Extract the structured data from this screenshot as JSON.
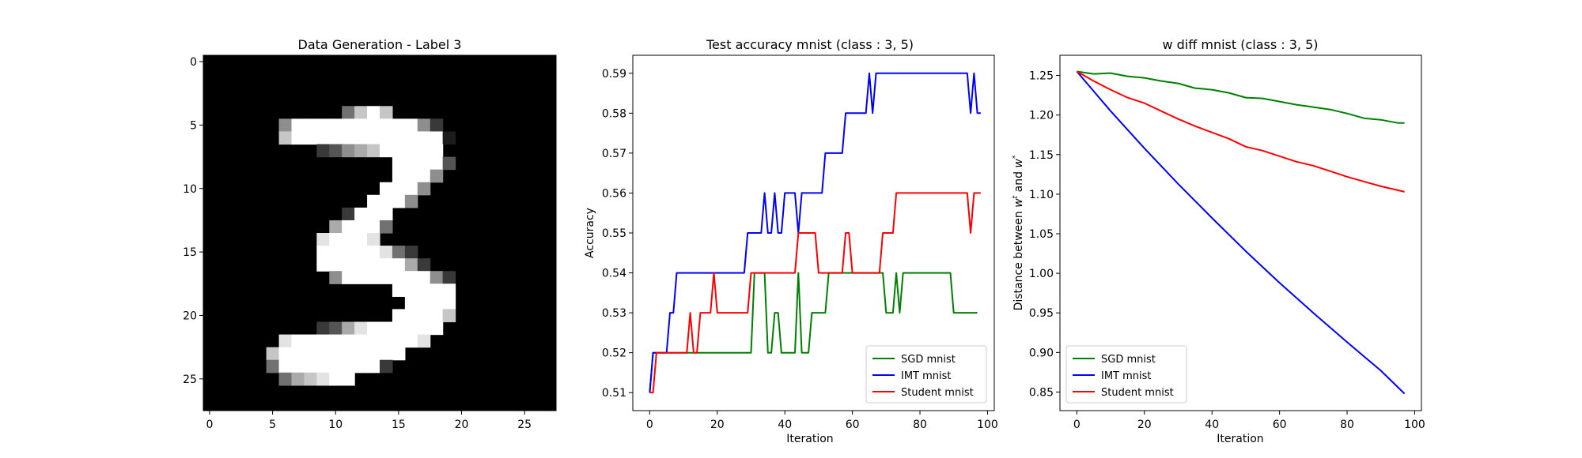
{
  "chart_data": [
    {
      "type": "heatmap",
      "title": "Data Generation - Label 3",
      "colormap": "gray",
      "xlim": [
        -0.5,
        27.5
      ],
      "ylim": [
        27.5,
        -0.5
      ],
      "xticks": [
        0,
        5,
        10,
        15,
        20,
        25
      ],
      "yticks": [
        0,
        5,
        10,
        15,
        20,
        25
      ],
      "grid": false,
      "image_rows": [
        "............................",
        "............................",
        "............................",
        "............................",
        "...........4797.............",
        "......5999999999952.........",
        "......79999999999991........",
        ".........2356799999.........",
        "...............99993........",
        "...............9995.........",
        "..............9995..........",
        ".............9995............",
        "...........2999.............",
        "..........69994.............",
        ".........89998..............",
        ".........99999842...........",
        ".........999999962..........",
        "..........5999999952........",
        "...............99999........",
        "................9999........",
        "...............99997........",
        ".........2368999999.........",
        "......899999999998..........",
        ".....79999999999............",
        ".....4999999992.............",
        "......467899................",
        "............................",
        "............................"
      ]
    },
    {
      "type": "line",
      "title": "Test accuracy mnist (class : 3, 5)",
      "xlabel": "Iteration",
      "ylabel": "Accuracy",
      "xlim": [
        -5,
        102
      ],
      "ylim": [
        0.5055,
        0.5945
      ],
      "xticks": [
        0,
        20,
        40,
        60,
        80,
        100
      ],
      "yticks": [
        0.51,
        0.52,
        0.53,
        0.54,
        0.55,
        0.56,
        0.57,
        0.58,
        0.59
      ],
      "grid": false,
      "legend_position": "lower right",
      "series": [
        {
          "name": "SGD mnist",
          "color": "#008000",
          "points": [
            [
              0,
              0.51
            ],
            [
              1,
              0.52
            ],
            [
              30,
              0.52
            ],
            [
              31,
              0.54
            ],
            [
              34,
              0.54
            ],
            [
              35,
              0.52
            ],
            [
              36,
              0.52
            ],
            [
              37,
              0.53
            ],
            [
              38,
              0.53
            ],
            [
              39,
              0.52
            ],
            [
              43,
              0.52
            ],
            [
              44,
              0.54
            ],
            [
              45,
              0.52
            ],
            [
              47,
              0.52
            ],
            [
              48,
              0.53
            ],
            [
              52,
              0.53
            ],
            [
              53,
              0.54
            ],
            [
              69,
              0.54
            ],
            [
              70,
              0.53
            ],
            [
              72,
              0.53
            ],
            [
              73,
              0.54
            ],
            [
              74,
              0.53
            ],
            [
              75,
              0.54
            ],
            [
              89,
              0.54
            ],
            [
              90,
              0.53
            ],
            [
              97,
              0.53
            ]
          ]
        },
        {
          "name": "IMT mnist",
          "color": "#0000ff",
          "points": [
            [
              0,
              0.51
            ],
            [
              1,
              0.52
            ],
            [
              5,
              0.52
            ],
            [
              6,
              0.53
            ],
            [
              7,
              0.53
            ],
            [
              8,
              0.54
            ],
            [
              28,
              0.54
            ],
            [
              29,
              0.55
            ],
            [
              33,
              0.55
            ],
            [
              34,
              0.56
            ],
            [
              35,
              0.55
            ],
            [
              36,
              0.55
            ],
            [
              37,
              0.56
            ],
            [
              38,
              0.55
            ],
            [
              39,
              0.55
            ],
            [
              40,
              0.56
            ],
            [
              43,
              0.56
            ],
            [
              44,
              0.55
            ],
            [
              45,
              0.56
            ],
            [
              51,
              0.56
            ],
            [
              52,
              0.57
            ],
            [
              57,
              0.57
            ],
            [
              58,
              0.58
            ],
            [
              64,
              0.58
            ],
            [
              65,
              0.59
            ],
            [
              66,
              0.58
            ],
            [
              67,
              0.59
            ],
            [
              94,
              0.59
            ],
            [
              95,
              0.58
            ],
            [
              96,
              0.59
            ],
            [
              97,
              0.58
            ],
            [
              98,
              0.58
            ]
          ]
        },
        {
          "name": "Student mnist",
          "color": "#ff0000",
          "points": [
            [
              0,
              0.51
            ],
            [
              1,
              0.51
            ],
            [
              2,
              0.52
            ],
            [
              11,
              0.52
            ],
            [
              12,
              0.53
            ],
            [
              13,
              0.52
            ],
            [
              14,
              0.52
            ],
            [
              15,
              0.53
            ],
            [
              18,
              0.53
            ],
            [
              19,
              0.54
            ],
            [
              20,
              0.53
            ],
            [
              28,
              0.53
            ],
            [
              29,
              0.53
            ],
            [
              30,
              0.54
            ],
            [
              36,
              0.54
            ],
            [
              37,
              0.54
            ],
            [
              38,
              0.54
            ],
            [
              43,
              0.54
            ],
            [
              44,
              0.55
            ],
            [
              49,
              0.55
            ],
            [
              50,
              0.54
            ],
            [
              57,
              0.54
            ],
            [
              58,
              0.55
            ],
            [
              59,
              0.55
            ],
            [
              60,
              0.54
            ],
            [
              68,
              0.54
            ],
            [
              69,
              0.55
            ],
            [
              72,
              0.55
            ],
            [
              73,
              0.56
            ],
            [
              94,
              0.56
            ],
            [
              95,
              0.55
            ],
            [
              96,
              0.56
            ],
            [
              98,
              0.56
            ]
          ]
        }
      ]
    },
    {
      "type": "line",
      "title": "w diff mnist (class : 3, 5)",
      "xlabel": "Iteration",
      "ylabel": "Distance between w^t and w^*",
      "xlim": [
        -5,
        102
      ],
      "ylim": [
        0.8265,
        1.2755
      ],
      "xticks": [
        0,
        20,
        40,
        60,
        80,
        100
      ],
      "yticks": [
        0.85,
        0.9,
        0.95,
        1.0,
        1.05,
        1.1,
        1.15,
        1.2,
        1.25
      ],
      "grid": false,
      "legend_position": "lower left",
      "series": [
        {
          "name": "SGD mnist",
          "color": "#008000",
          "points": [
            [
              0,
              1.255
            ],
            [
              5,
              1.252
            ],
            [
              10,
              1.253
            ],
            [
              15,
              1.249
            ],
            [
              20,
              1.247
            ],
            [
              25,
              1.243
            ],
            [
              30,
              1.24
            ],
            [
              35,
              1.234
            ],
            [
              40,
              1.232
            ],
            [
              45,
              1.228
            ],
            [
              50,
              1.222
            ],
            [
              55,
              1.221
            ],
            [
              60,
              1.217
            ],
            [
              65,
              1.213
            ],
            [
              70,
              1.21
            ],
            [
              75,
              1.207
            ],
            [
              80,
              1.202
            ],
            [
              85,
              1.196
            ],
            [
              90,
              1.194
            ],
            [
              95,
              1.19
            ],
            [
              97,
              1.19
            ]
          ]
        },
        {
          "name": "IMT mnist",
          "color": "#0000ff",
          "points": [
            [
              0,
              1.255
            ],
            [
              10,
              1.205
            ],
            [
              20,
              1.158
            ],
            [
              30,
              1.113
            ],
            [
              40,
              1.07
            ],
            [
              50,
              1.028
            ],
            [
              60,
              0.988
            ],
            [
              70,
              0.95
            ],
            [
              80,
              0.913
            ],
            [
              90,
              0.877
            ],
            [
              97,
              0.848
            ]
          ]
        },
        {
          "name": "Student mnist",
          "color": "#ff0000",
          "points": [
            [
              0,
              1.255
            ],
            [
              5,
              1.243
            ],
            [
              10,
              1.232
            ],
            [
              15,
              1.222
            ],
            [
              20,
              1.215
            ],
            [
              25,
              1.205
            ],
            [
              30,
              1.195
            ],
            [
              35,
              1.186
            ],
            [
              40,
              1.178
            ],
            [
              45,
              1.17
            ],
            [
              50,
              1.16
            ],
            [
              55,
              1.155
            ],
            [
              60,
              1.148
            ],
            [
              65,
              1.141
            ],
            [
              70,
              1.136
            ],
            [
              75,
              1.129
            ],
            [
              80,
              1.122
            ],
            [
              85,
              1.116
            ],
            [
              90,
              1.11
            ],
            [
              95,
              1.105
            ],
            [
              97,
              1.103
            ]
          ]
        }
      ]
    }
  ]
}
